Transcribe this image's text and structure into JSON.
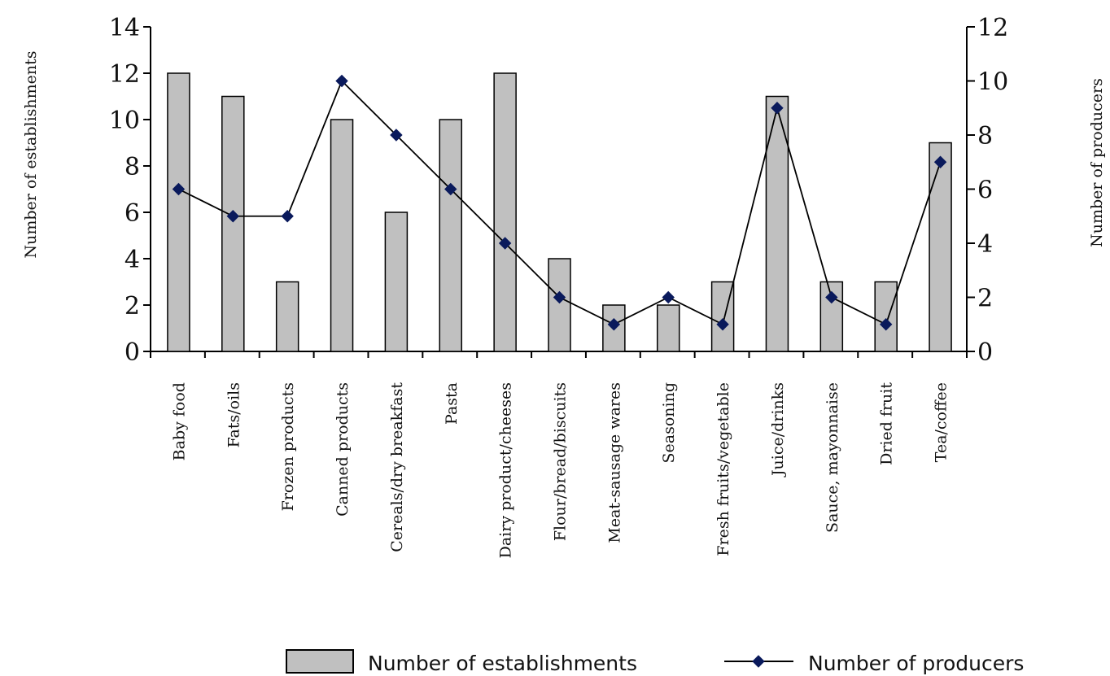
{
  "chart_data": {
    "type": "bar",
    "categories": [
      "Baby food",
      "Fats/oils",
      "Frozen products",
      "Canned products",
      "Cereals/dry breakfast",
      "Pasta",
      "Dairy product/cheeses",
      "Flour/bread/biscuits",
      "Meat-sausage wares",
      "Seasoning",
      "Fresh fruits/vegetable",
      "Juice/drinks",
      "Sauce, mayonnaise",
      "Dried fruit",
      "Tea/coffee"
    ],
    "series": [
      {
        "name": "Number of establishments",
        "type": "bar",
        "axis": "left",
        "values": [
          12,
          11,
          3,
          10,
          6,
          10,
          12,
          4,
          2,
          2,
          3,
          11,
          3,
          3,
          9
        ]
      },
      {
        "name": "Number of producers",
        "type": "line",
        "axis": "right",
        "values": [
          6,
          5,
          5,
          10,
          8,
          6,
          4,
          2,
          1,
          2,
          1,
          9,
          2,
          1,
          7
        ]
      }
    ],
    "ylabel_left": "Number of establishments",
    "ylabel_right": "Number of producers",
    "ylim_left": [
      0,
      14
    ],
    "ylim_right": [
      0,
      12
    ],
    "yticks_left": [
      "0",
      "2",
      "4",
      "6",
      "8",
      "10",
      "12",
      "14"
    ],
    "yticks_right": [
      "0",
      "2",
      "4",
      "6",
      "8",
      "10",
      "12"
    ],
    "grid": false,
    "legend_position": "bottom",
    "colors": {
      "bar_fill": "#c0c0c0",
      "bar_stroke": "#000000",
      "line": "#000000",
      "marker": "#0a1a5c"
    }
  }
}
